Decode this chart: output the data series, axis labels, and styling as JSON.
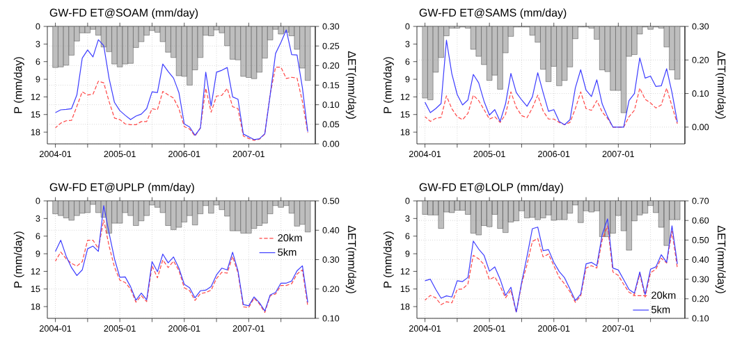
{
  "chart_data": [
    {
      "type": "bar",
      "title": "GW-FD ET@SOAM (mm/day)",
      "ylabel": "P (mm/day)",
      "y2label": "ΔET(mm/day)",
      "grid": true,
      "x": [
        "2004-01",
        "2004-02",
        "2004-03",
        "2004-04",
        "2004-05",
        "2004-06",
        "2004-07",
        "2004-08",
        "2004-09",
        "2004-10",
        "2004-11",
        "2004-12",
        "2005-01",
        "2005-02",
        "2005-03",
        "2005-04",
        "2005-05",
        "2005-06",
        "2005-07",
        "2005-08",
        "2005-09",
        "2005-10",
        "2005-11",
        "2005-12",
        "2006-01",
        "2006-02",
        "2006-03",
        "2006-04",
        "2006-05",
        "2006-06",
        "2006-07",
        "2006-08",
        "2006-09",
        "2006-10",
        "2006-11",
        "2006-12",
        "2007-01",
        "2007-02",
        "2007-03",
        "2007-04",
        "2007-05",
        "2007-06",
        "2007-07",
        "2007-08",
        "2007-09",
        "2007-10",
        "2007-11",
        "2007-12"
      ],
      "xlim": [
        "2003-11-16",
        "2008-01-13"
      ],
      "xticks": [
        "2004-01",
        {
          "value": "2004-07",
          "label": null
        },
        "2005-01",
        {
          "value": "2005-07",
          "label": null
        },
        "2006-01",
        {
          "value": "2006-07",
          "label": null
        },
        "2007-01",
        {
          "value": "2007-07",
          "label": null
        }
      ],
      "ylim": [
        20,
        0
      ],
      "yticks": [
        0,
        3,
        6,
        9,
        12,
        15,
        18
      ],
      "y2lim": [
        0,
        0.3
      ],
      "y2ticks": [
        {
          "value": 0,
          "label": "0.00"
        },
        {
          "value": 0.05,
          "label": "0.05"
        },
        {
          "value": 0.1,
          "label": "0.10"
        },
        {
          "value": 0.15,
          "label": "0.15"
        },
        {
          "value": 0.2,
          "label": "0.20"
        },
        {
          "value": 0.25,
          "label": "0.25"
        },
        {
          "value": 0.3,
          "label": "0.30"
        }
      ],
      "series": [
        {
          "color": "#bebebe",
          "values": [
            7.0,
            6.9,
            6.6,
            4.9,
            2.5,
            1.1,
            1.1,
            0.5,
            1.5,
            3.5,
            4.3,
            6.4,
            6.9,
            6.4,
            6.3,
            3.6,
            2.6,
            1.5,
            0.7,
            1.0,
            2.6,
            4.4,
            5.3,
            8.4,
            8.5,
            10.0,
            7.4,
            5.3,
            1.5,
            1.6,
            0.6,
            1.1,
            3.3,
            5.6,
            5.7,
            8.5,
            8.7,
            8.9,
            7.8,
            5.4,
            2.3,
            0.5,
            1.3,
            1.0,
            1.6,
            3.9,
            7.1,
            9.2
          ]
        },
        {
          "type": "line",
          "axis": "y2",
          "color": "#ff4646",
          "line_style": "dashed",
          "values": [
            0.041,
            0.053,
            0.059,
            0.06,
            0.096,
            0.133,
            0.125,
            0.127,
            0.16,
            0.156,
            0.108,
            0.066,
            0.062,
            0.051,
            0.049,
            0.049,
            0.057,
            0.057,
            0.09,
            0.087,
            0.134,
            0.125,
            0.117,
            0.09,
            0.044,
            0.038,
            0.02,
            0.041,
            0.142,
            0.081,
            0.122,
            0.124,
            0.142,
            0.095,
            0.09,
            0.02,
            0.014,
            0.009,
            0.012,
            0.025,
            0.128,
            0.196,
            0.196,
            0.167,
            0.17,
            0.168,
            0.108,
            0.028
          ]
        },
        {
          "type": "line",
          "axis": "y2",
          "color": "#3c3cff",
          "line_style": "solid",
          "values": [
            0.08,
            0.087,
            0.088,
            0.09,
            0.125,
            0.219,
            0.24,
            0.222,
            0.266,
            0.251,
            0.167,
            0.106,
            0.085,
            0.073,
            0.062,
            0.071,
            0.076,
            0.09,
            0.133,
            0.131,
            0.204,
            0.185,
            0.168,
            0.131,
            0.051,
            0.043,
            0.022,
            0.04,
            0.183,
            0.097,
            0.183,
            0.188,
            0.195,
            0.12,
            0.114,
            0.025,
            0.018,
            0.011,
            0.013,
            0.026,
            0.125,
            0.231,
            0.259,
            0.291,
            0.228,
            0.227,
            0.143,
            0.031
          ]
        }
      ]
    },
    {
      "type": "bar",
      "title": "GW-FD ET@SAMS (mm/day)",
      "ylabel": "P (mm/day)",
      "y2label": "ΔET(mm/day)",
      "grid": true,
      "x": [
        "2004-01",
        "2004-02",
        "2004-03",
        "2004-04",
        "2004-05",
        "2004-06",
        "2004-07",
        "2004-08",
        "2004-09",
        "2004-10",
        "2004-11",
        "2004-12",
        "2005-01",
        "2005-02",
        "2005-03",
        "2005-04",
        "2005-05",
        "2005-06",
        "2005-07",
        "2005-08",
        "2005-09",
        "2005-10",
        "2005-11",
        "2005-12",
        "2006-01",
        "2006-02",
        "2006-03",
        "2006-04",
        "2006-05",
        "2006-06",
        "2006-07",
        "2006-08",
        "2006-09",
        "2006-10",
        "2006-11",
        "2006-12",
        "2007-01",
        "2007-02",
        "2007-03",
        "2007-04",
        "2007-05",
        "2007-06",
        "2007-07",
        "2007-08",
        "2007-09",
        "2007-10",
        "2007-11",
        "2007-12"
      ],
      "xlim": [
        "2003-11-16",
        "2008-01-13"
      ],
      "xticks": [
        "2004-01",
        {
          "value": "2004-07",
          "label": null
        },
        "2005-01",
        {
          "value": "2005-07",
          "label": null
        },
        "2006-01",
        {
          "value": "2006-07",
          "label": null
        },
        "2007-01",
        {
          "value": "2007-07",
          "label": null
        }
      ],
      "ylim": [
        20,
        0
      ],
      "yticks": [
        0,
        3,
        6,
        9,
        12,
        15,
        18
      ],
      "y2lim": [
        -0.05,
        0.3
      ],
      "y2ticks": [
        {
          "value": 0,
          "label": "0.00"
        },
        {
          "value": 0.1,
          "label": "0.10"
        },
        {
          "value": 0.2,
          "label": "0.20"
        },
        {
          "value": 0.3,
          "label": "0.30"
        }
      ],
      "series": [
        {
          "color": "#bebebe",
          "values": [
            12.2,
            12.5,
            7.8,
            5.3,
            1.6,
            0.3,
            0.3,
            0.1,
            0.3,
            3.9,
            5.1,
            6.5,
            9.2,
            8.3,
            10.7,
            4.5,
            1.7,
            0.1,
            0.1,
            0.1,
            1.5,
            2.7,
            7.3,
            9.4,
            6.8,
            10.1,
            9.2,
            6.9,
            2.1,
            0.1,
            0.1,
            0.3,
            2.2,
            7.4,
            7.7,
            10.9,
            10.9,
            14.7,
            5.1,
            4.8,
            1.3,
            0.1,
            0.5,
            0.1,
            0.3,
            3.5,
            7.4,
            9.0
          ]
        },
        {
          "type": "line",
          "axis": "y2",
          "color": "#ff4646",
          "line_style": "dashed",
          "values": [
            0.031,
            0.017,
            0.026,
            0.029,
            0.093,
            0.055,
            0.031,
            0.022,
            0.041,
            0.095,
            0.079,
            0.052,
            0.024,
            0.031,
            0.014,
            0.038,
            0.105,
            0.059,
            0.034,
            0.028,
            0.057,
            0.095,
            0.048,
            0.024,
            0.024,
            0.014,
            0.007,
            0.014,
            0.055,
            0.105,
            0.055,
            0.05,
            0.079,
            0.045,
            0.026,
            0,
            0,
            0,
            0.031,
            0.05,
            0.116,
            0.083,
            0.072,
            0.057,
            0.066,
            0.116,
            0.062,
            0.01
          ]
        },
        {
          "type": "line",
          "axis": "y2",
          "color": "#3c3cff",
          "line_style": "solid",
          "values": [
            0.074,
            0.043,
            0.055,
            0.07,
            0.259,
            0.159,
            0.097,
            0.066,
            0.081,
            0.157,
            0.132,
            0.077,
            0.036,
            0.052,
            0.017,
            0.069,
            0.16,
            0.103,
            0.081,
            0.062,
            0.09,
            0.162,
            0.103,
            0.047,
            0.052,
            0.017,
            0.007,
            0.022,
            0.117,
            0.171,
            0.11,
            0.091,
            0.141,
            0.069,
            0.031,
            0,
            0,
            0,
            0.079,
            0.1,
            0.206,
            0.146,
            0.152,
            0.121,
            0.123,
            0.174,
            0.103,
            0.015
          ]
        }
      ]
    },
    {
      "type": "bar",
      "title": "GW-FD ET@UPLP (mm/day)",
      "ylabel": "P (mm/day)",
      "y2label": "ΔET(mm/day)",
      "grid": true,
      "legend": "right",
      "x": [
        "2004-01",
        "2004-02",
        "2004-03",
        "2004-04",
        "2004-05",
        "2004-06",
        "2004-07",
        "2004-08",
        "2004-09",
        "2004-10",
        "2004-11",
        "2004-12",
        "2005-01",
        "2005-02",
        "2005-03",
        "2005-04",
        "2005-05",
        "2005-06",
        "2005-07",
        "2005-08",
        "2005-09",
        "2005-10",
        "2005-11",
        "2005-12",
        "2006-01",
        "2006-02",
        "2006-03",
        "2006-04",
        "2006-05",
        "2006-06",
        "2006-07",
        "2006-08",
        "2006-09",
        "2006-10",
        "2006-11",
        "2006-12",
        "2007-01",
        "2007-02",
        "2007-03",
        "2007-04",
        "2007-05",
        "2007-06",
        "2007-07",
        "2007-08",
        "2007-09",
        "2007-10",
        "2007-11",
        "2007-12"
      ],
      "xlim": [
        "2003-11-16",
        "2008-01-13"
      ],
      "xticks": [
        "2004-01",
        {
          "value": "2004-07",
          "label": null
        },
        "2005-01",
        {
          "value": "2005-07",
          "label": null
        },
        "2006-01",
        {
          "value": "2006-07",
          "label": null
        },
        "2007-01",
        {
          "value": "2007-07",
          "label": null
        }
      ],
      "ylim": [
        20,
        0
      ],
      "yticks": [
        0,
        3,
        6,
        9,
        12,
        15,
        18
      ],
      "y2lim": [
        0.1,
        0.5
      ],
      "y2ticks": [
        {
          "value": 0.1,
          "label": "0.10"
        },
        {
          "value": 0.2,
          "label": "0.20"
        },
        {
          "value": 0.3,
          "label": "0.30"
        },
        {
          "value": 0.4,
          "label": "0.40"
        },
        {
          "value": 0.5,
          "label": "0.50"
        }
      ],
      "series": [
        {
          "color": "#bebebe",
          "values": [
            2.2,
            2.5,
            2.9,
            3.3,
            2.5,
            2.1,
            2.0,
            0.6,
            2.0,
            2.8,
            5.5,
            3.8,
            3.8,
            2.0,
            2.5,
            4.2,
            3.4,
            2.5,
            0.7,
            1.1,
            2.0,
            4.2,
            4.9,
            4.5,
            3.6,
            2.5,
            4.1,
            2.2,
            0.8,
            2.1,
            0.7,
            1.5,
            2.6,
            5.1,
            5.1,
            5.5,
            5.5,
            4.7,
            4.2,
            3.8,
            2.2,
            0.8,
            1.1,
            0.8,
            2.1,
            4.3,
            4.0,
            5.3
          ]
        },
        {
          "type": "line",
          "axis": "y2",
          "name": "20km",
          "color": "#ff4646",
          "line_style": "dashed",
          "values": [
            0.295,
            0.326,
            0.303,
            0.287,
            0.278,
            0.293,
            0.366,
            0.366,
            0.338,
            0.435,
            0.346,
            0.275,
            0.23,
            0.222,
            0.2,
            0.155,
            0.177,
            0.157,
            0.279,
            0.238,
            0.299,
            0.273,
            0.295,
            0.263,
            0.204,
            0.194,
            0.161,
            0.184,
            0.188,
            0.196,
            0.236,
            0.257,
            0.254,
            0.311,
            0.255,
            0.139,
            0.137,
            0.169,
            0.149,
            0.12,
            0.177,
            0.183,
            0.212,
            0.212,
            0.218,
            0.251,
            0.265,
            0.141
          ]
        },
        {
          "type": "line",
          "axis": "y2",
          "name": "5km",
          "color": "#3c3cff",
          "line_style": "solid",
          "values": [
            0.328,
            0.366,
            0.312,
            0.273,
            0.246,
            0.265,
            0.337,
            0.346,
            0.328,
            0.484,
            0.39,
            0.303,
            0.24,
            0.241,
            0.208,
            0.162,
            0.186,
            0.163,
            0.293,
            0.259,
            0.319,
            0.289,
            0.309,
            0.271,
            0.216,
            0.204,
            0.17,
            0.194,
            0.196,
            0.208,
            0.248,
            0.271,
            0.265,
            0.325,
            0.262,
            0.147,
            0.143,
            0.173,
            0.153,
            0.125,
            0.18,
            0.188,
            0.22,
            0.22,
            0.227,
            0.262,
            0.279,
            0.154
          ]
        }
      ]
    },
    {
      "type": "bar",
      "title": "GW-FD ET@LOLP (mm/day)",
      "ylabel": "P (mm/day)",
      "y2label": "ΔET(mm/day)",
      "grid": true,
      "legend": "bottom right",
      "x": [
        "2004-01",
        "2004-02",
        "2004-03",
        "2004-04",
        "2004-05",
        "2004-06",
        "2004-07",
        "2004-08",
        "2004-09",
        "2004-10",
        "2004-11",
        "2004-12",
        "2005-01",
        "2005-02",
        "2005-03",
        "2005-04",
        "2005-05",
        "2005-06",
        "2005-07",
        "2005-08",
        "2005-09",
        "2005-10",
        "2005-11",
        "2005-12",
        "2006-01",
        "2006-02",
        "2006-03",
        "2006-04",
        "2006-05",
        "2006-06",
        "2006-07",
        "2006-08",
        "2006-09",
        "2006-10",
        "2006-11",
        "2006-12",
        "2007-01",
        "2007-02",
        "2007-03",
        "2007-04",
        "2007-05",
        "2007-06",
        "2007-07",
        "2007-08",
        "2007-09",
        "2007-10",
        "2007-11",
        "2007-12"
      ],
      "xlim": [
        "2003-11-16",
        "2008-01-13"
      ],
      "xticks": [
        "2004-01",
        {
          "value": "2004-07",
          "label": null
        },
        "2005-01",
        {
          "value": "2005-07",
          "label": null
        },
        "2006-01",
        {
          "value": "2006-07",
          "label": null
        },
        "2007-01",
        {
          "value": "2007-07",
          "label": null
        }
      ],
      "ylim": [
        20,
        0
      ],
      "yticks": [
        0,
        3,
        6,
        9,
        12,
        15,
        18
      ],
      "y2lim": [
        0.1,
        0.7
      ],
      "y2ticks": [
        {
          "value": 0.1,
          "label": "0.10"
        },
        {
          "value": 0.2,
          "label": "0.20"
        },
        {
          "value": 0.3,
          "label": "0.30"
        },
        {
          "value": 0.4,
          "label": "0.40"
        },
        {
          "value": 0.5,
          "label": "0.50"
        },
        {
          "value": 0.6,
          "label": "0.60"
        },
        {
          "value": 0.7,
          "label": "0.70"
        }
      ],
      "series": [
        {
          "color": "#bebebe",
          "values": [
            2.3,
            2.4,
            2.4,
            4.7,
            1.9,
            2.0,
            1.6,
            1.6,
            2.3,
            5.5,
            5.8,
            4.2,
            4.4,
            2.3,
            4.7,
            5.4,
            3.6,
            3.4,
            1.7,
            2.9,
            2.8,
            3.2,
            2.9,
            2.4,
            3.3,
            3.2,
            3.2,
            2.1,
            0.7,
            3.7,
            1.7,
            1.9,
            1.7,
            6.1,
            6.1,
            5.5,
            2.5,
            5.1,
            8.4,
            3.4,
            2.4,
            2.1,
            0.8,
            2.0,
            4.5,
            7.6,
            3.2,
            3.2
          ]
        },
        {
          "type": "line",
          "axis": "y2",
          "name": "20km",
          "color": "#ff4646",
          "line_style": "dashed",
          "values": [
            0.193,
            0.217,
            0.205,
            0.17,
            0.185,
            0.179,
            0.248,
            0.25,
            0.276,
            0.422,
            0.404,
            0.375,
            0.298,
            0.312,
            0.264,
            0.205,
            0.244,
            0.13,
            0.276,
            0.375,
            0.493,
            0.508,
            0.414,
            0.428,
            0.369,
            0.309,
            0.276,
            0.236,
            0.182,
            0.215,
            0.357,
            0.369,
            0.357,
            0.501,
            0.572,
            0.337,
            0.319,
            0.274,
            0.233,
            0.221,
            0.327,
            0.209,
            0.333,
            0.351,
            0.407,
            0.383,
            0.544,
            0.357
          ]
        },
        {
          "type": "line",
          "axis": "y2",
          "name": "5km",
          "color": "#3c3cff",
          "line_style": "solid",
          "values": [
            0.292,
            0.3,
            0.248,
            0.203,
            0.215,
            0.209,
            0.292,
            0.288,
            0.309,
            0.495,
            0.454,
            0.422,
            0.341,
            0.363,
            0.3,
            0.217,
            0.259,
            0.132,
            0.283,
            0.416,
            0.558,
            0.566,
            0.446,
            0.451,
            0.386,
            0.339,
            0.307,
            0.25,
            0.191,
            0.224,
            0.378,
            0.386,
            0.369,
            0.528,
            0.608,
            0.357,
            0.347,
            0.298,
            0.247,
            0.229,
            0.337,
            0.221,
            0.351,
            0.363,
            0.425,
            0.386,
            0.573,
            0.378
          ]
        }
      ]
    }
  ]
}
